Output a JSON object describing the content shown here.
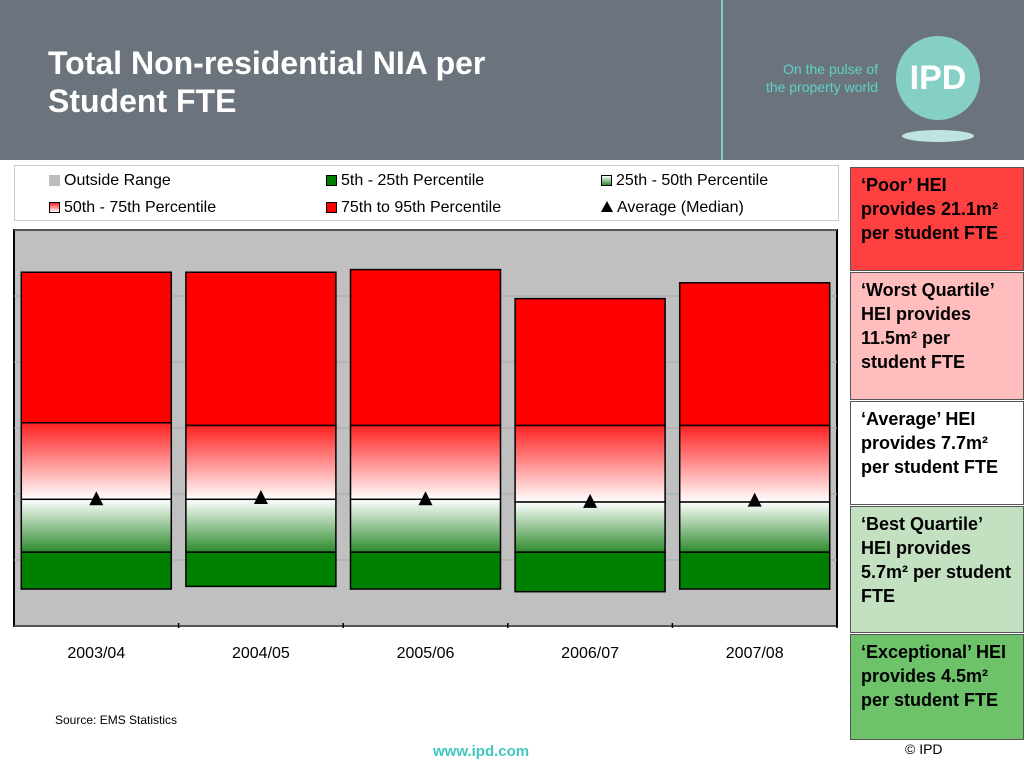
{
  "header": {
    "title_line1": "Total Non-residential NIA per",
    "title_line2": "Student FTE",
    "tagline_line1": "On the pulse of",
    "tagline_line2": "the property world",
    "logo_text": "IPD"
  },
  "legend": {
    "items": [
      {
        "label": "Outside Range",
        "color": "#bdbdbd"
      },
      {
        "label": "5th - 25th Percentile",
        "color": "#008000"
      },
      {
        "label": "25th - 50th Percentile",
        "color": "#e8f3e8"
      },
      {
        "label": "50th - 75th Percentile",
        "color": "#ffd0d0"
      },
      {
        "label": "75th to 95th Percentile",
        "color": "#ff0000"
      },
      {
        "label": "Average (Median)",
        "color": "#000000"
      }
    ]
  },
  "chart_data": {
    "type": "bar",
    "stacked": true,
    "categories": [
      "2003/04",
      "2004/05",
      "2005/06",
      "2006/07",
      "2007/08"
    ],
    "series": [
      {
        "name": "5th - 25th Percentile",
        "low": [
          4.4,
          4.5,
          4.4,
          4.3,
          4.4
        ],
        "high": [
          5.8,
          5.8,
          5.8,
          5.8,
          5.8
        ]
      },
      {
        "name": "25th - 50th Percentile",
        "low": [
          5.8,
          5.8,
          5.8,
          5.8,
          5.8
        ],
        "high": [
          7.8,
          7.8,
          7.8,
          7.7,
          7.7
        ]
      },
      {
        "name": "50th - 75th Percentile",
        "low": [
          7.8,
          7.8,
          7.8,
          7.7,
          7.7
        ],
        "high": [
          10.7,
          10.6,
          10.6,
          10.6,
          10.6
        ]
      },
      {
        "name": "75th to 95th Percentile",
        "low": [
          10.7,
          10.6,
          10.6,
          10.6,
          10.6
        ],
        "high": [
          16.4,
          16.4,
          16.5,
          15.4,
          16.0
        ]
      }
    ],
    "median": [
      7.8,
      7.85,
      7.8,
      7.7,
      7.75
    ],
    "ylim": [
      3,
      18
    ],
    "grid": true,
    "legend_position": "top",
    "title": "",
    "xlabel": "",
    "ylabel": ""
  },
  "panels": [
    {
      "text": "‘Poor’ HEI provides 21.1m² per student FTE",
      "color": "#ff4040"
    },
    {
      "text": "‘Worst Quartile’ HEI provides 11.5m² per student FTE",
      "color": "#ffbdbd"
    },
    {
      "text": "‘Average’ HEI provides 7.7m² per student FTE",
      "color": "#ffffff"
    },
    {
      "text": "‘Best Quartile’ HEI provides 5.7m² per student FTE",
      "color": "#c3e0c1"
    },
    {
      "text": "‘Exceptional’ HEI provides 4.5m² per student FTE",
      "color": "#6ec36a"
    }
  ],
  "footer": {
    "source": "Source: EMS Statistics",
    "url": "www.ipd.com",
    "copyright": "© IPD"
  }
}
